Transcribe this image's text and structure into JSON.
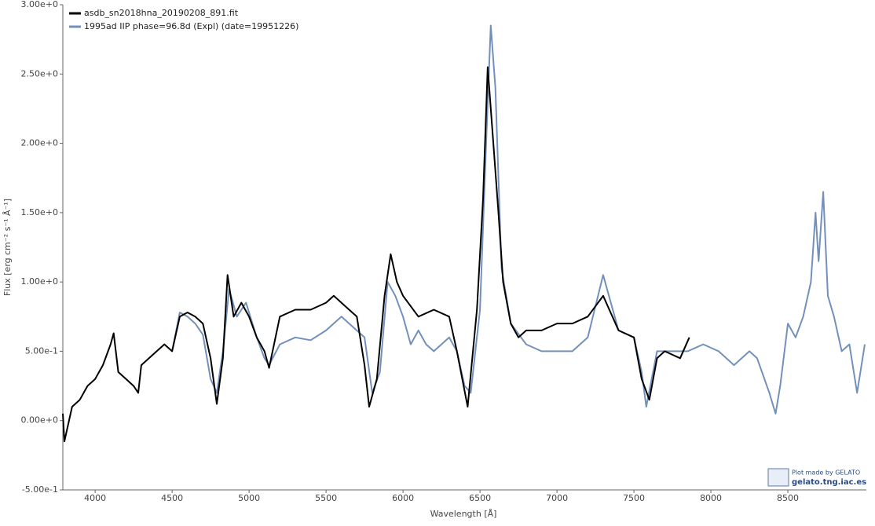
{
  "chart_data": {
    "type": "line",
    "xlabel": "Wavelength [Å]",
    "ylabel": "Flux [erg cm⁻² s⁻¹ Å⁻¹]",
    "xlim": [
      3790,
      9010
    ],
    "ylim": [
      -0.5,
      3.0
    ],
    "xticks": [
      4000,
      4500,
      5000,
      5500,
      6000,
      6500,
      7000,
      7500,
      8000,
      8500
    ],
    "yticks": [
      {
        "value": -0.5,
        "label": "-5.00e-1"
      },
      {
        "value": 0,
        "label": "0.00e+0"
      },
      {
        "value": 0.5,
        "label": "5.00e-1"
      },
      {
        "value": 1.0,
        "label": "1.00e+0"
      },
      {
        "value": 1.5,
        "label": "1.50e+0"
      },
      {
        "value": 2.0,
        "label": "2.00e+0"
      },
      {
        "value": 2.5,
        "label": "2.50e+0"
      },
      {
        "value": 3.0,
        "label": "3.00e+0"
      }
    ],
    "legend": "top-left",
    "credit": {
      "line1": "Plot made by GELATO",
      "line2": "gelato.tng.iac.es"
    },
    "series": [
      {
        "name": "asdb_sn2018hna_20190208_891.fit",
        "color": "#000000",
        "x": [
          3790,
          3800,
          3850,
          3900,
          3950,
          4000,
          4050,
          4100,
          4120,
          4150,
          4200,
          4250,
          4280,
          4300,
          4350,
          4400,
          4450,
          4500,
          4550,
          4600,
          4650,
          4700,
          4750,
          4790,
          4830,
          4860,
          4900,
          4950,
          5000,
          5050,
          5100,
          5130,
          5200,
          5300,
          5400,
          5500,
          5550,
          5600,
          5650,
          5700,
          5750,
          5780,
          5830,
          5880,
          5920,
          5960,
          6000,
          6100,
          6200,
          6300,
          6350,
          6420,
          6480,
          6520,
          6550,
          6580,
          6620,
          6650,
          6700,
          6750,
          6800,
          6900,
          7000,
          7100,
          7200,
          7300,
          7400,
          7500,
          7550,
          7600,
          7650,
          7700,
          7800,
          7860
        ],
        "values": [
          0.05,
          -0.15,
          0.1,
          0.15,
          0.25,
          0.3,
          0.4,
          0.55,
          0.63,
          0.35,
          0.3,
          0.25,
          0.2,
          0.4,
          0.45,
          0.5,
          0.55,
          0.5,
          0.75,
          0.78,
          0.75,
          0.7,
          0.45,
          0.12,
          0.45,
          1.05,
          0.75,
          0.85,
          0.75,
          0.6,
          0.5,
          0.38,
          0.75,
          0.8,
          0.8,
          0.85,
          0.9,
          0.85,
          0.8,
          0.75,
          0.4,
          0.1,
          0.3,
          0.9,
          1.2,
          1.0,
          0.9,
          0.75,
          0.8,
          0.75,
          0.5,
          0.1,
          0.8,
          1.6,
          2.55,
          2.1,
          1.5,
          1.0,
          0.7,
          0.6,
          0.65,
          0.65,
          0.7,
          0.7,
          0.75,
          0.9,
          0.65,
          0.6,
          0.3,
          0.15,
          0.45,
          0.5,
          0.45,
          0.6
        ]
      },
      {
        "name": "1995ad  IIP phase=96.8d (Expl)  (date=19951226)",
        "color": "#7390bb",
        "x": [
          4500,
          4550,
          4600,
          4650,
          4700,
          4750,
          4790,
          4830,
          4870,
          4920,
          4980,
          5050,
          5100,
          5130,
          5200,
          5300,
          5400,
          5500,
          5600,
          5650,
          5750,
          5800,
          5850,
          5900,
          5950,
          6000,
          6050,
          6100,
          6150,
          6200,
          6300,
          6350,
          6400,
          6440,
          6500,
          6540,
          6570,
          6600,
          6640,
          6700,
          6800,
          6900,
          7000,
          7100,
          7200,
          7300,
          7350,
          7400,
          7500,
          7550,
          7580,
          7650,
          7750,
          7850,
          7950,
          8050,
          8150,
          8250,
          8300,
          8380,
          8420,
          8450,
          8500,
          8550,
          8600,
          8650,
          8680,
          8700,
          8730,
          8760,
          8800,
          8850,
          8900,
          8950,
          9000
        ],
        "values": [
          0.5,
          0.78,
          0.75,
          0.7,
          0.62,
          0.3,
          0.2,
          0.5,
          0.95,
          0.75,
          0.85,
          0.6,
          0.45,
          0.4,
          0.55,
          0.6,
          0.58,
          0.65,
          0.75,
          0.7,
          0.6,
          0.2,
          0.35,
          1.0,
          0.9,
          0.75,
          0.55,
          0.65,
          0.55,
          0.5,
          0.6,
          0.5,
          0.25,
          0.2,
          0.8,
          2.0,
          2.85,
          2.4,
          1.1,
          0.7,
          0.55,
          0.5,
          0.5,
          0.5,
          0.6,
          1.05,
          0.85,
          0.65,
          0.6,
          0.35,
          0.1,
          0.5,
          0.5,
          0.5,
          0.55,
          0.5,
          0.4,
          0.5,
          0.45,
          0.2,
          0.05,
          0.25,
          0.7,
          0.6,
          0.75,
          1.0,
          1.5,
          1.15,
          1.65,
          0.9,
          0.75,
          0.5,
          0.55,
          0.2,
          0.55
        ]
      }
    ]
  }
}
